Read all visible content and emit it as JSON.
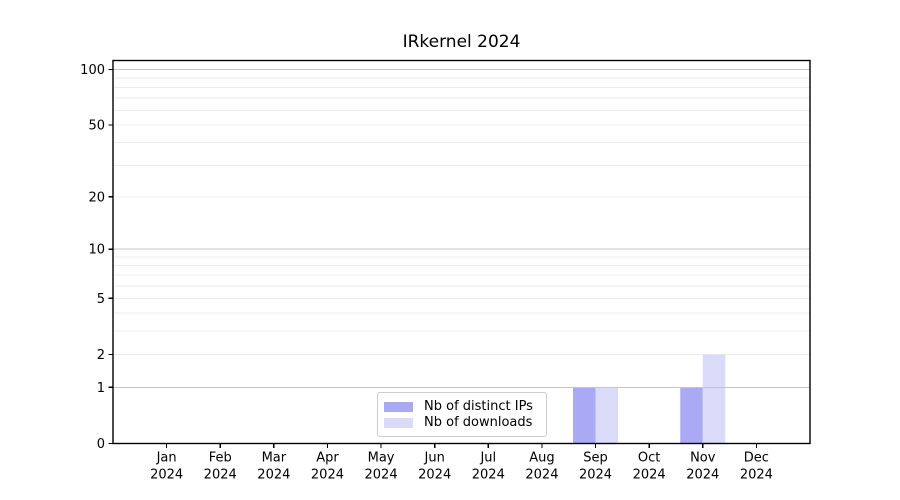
{
  "chart_data": {
    "type": "bar",
    "title": "IRkernel 2024",
    "x_months": [
      "Jan",
      "Feb",
      "Mar",
      "Apr",
      "May",
      "Jun",
      "Jul",
      "Aug",
      "Sep",
      "Oct",
      "Nov",
      "Dec"
    ],
    "x_year": "2024",
    "series": [
      {
        "name": "Nb of distinct IPs",
        "color": "#a9a9f4",
        "values": [
          0,
          0,
          0,
          0,
          0,
          0,
          0,
          0,
          1,
          0,
          1,
          0
        ]
      },
      {
        "name": "Nb of downloads",
        "color": "#dadaf9",
        "values": [
          0,
          0,
          0,
          0,
          0,
          0,
          0,
          0,
          1,
          0,
          2,
          0
        ]
      }
    ],
    "y_scale": "log1p",
    "y_ticks": [
      0,
      1,
      2,
      5,
      10,
      20,
      50,
      100
    ],
    "ylim": [
      0,
      112
    ],
    "grid": {
      "major_values": [
        1,
        10,
        100
      ],
      "minor_values": [
        2,
        3,
        4,
        5,
        6,
        7,
        8,
        9,
        20,
        30,
        40,
        50,
        60,
        70,
        80,
        90
      ]
    },
    "legend_position": "bottom-center"
  },
  "colors": {
    "axis": "#000000",
    "grid_major": "#c4c4c4",
    "grid_minor": "#ececec",
    "tick_text": "#000000",
    "legend_border": "#cccccc",
    "legend_bg": "#ffffff",
    "background": "#ffffff"
  }
}
